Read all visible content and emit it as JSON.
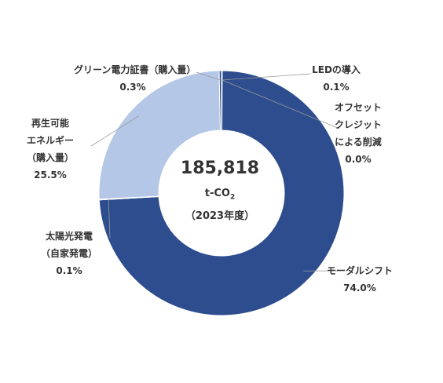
{
  "chart_data": {
    "type": "pie",
    "donut": true,
    "center": {
      "total": "185,818",
      "unit_main": "t-CO",
      "unit_sub": "2",
      "year": "（2023年度）"
    },
    "slices": [
      {
        "label_lines": [
          "LEDの導入"
        ],
        "value_text": "0.1%",
        "value": 0.1,
        "color": "#2e4d8e"
      },
      {
        "label_lines": [
          "オフセット",
          "クレジット",
          "による削減"
        ],
        "value_text": "0.0%",
        "value": 0.0,
        "color": "#2e4d8e"
      },
      {
        "label_lines": [
          "モーダルシフト"
        ],
        "value_text": "74.0%",
        "value": 74.0,
        "color": "#2e4d8e"
      },
      {
        "label_lines": [
          "太陽光発電",
          "（自家発電）"
        ],
        "value_text": "0.1%",
        "value": 0.1,
        "color": "#2e4d8e"
      },
      {
        "label_lines": [
          "再生可能",
          "エネルギー",
          "（購入量）"
        ],
        "value_text": "25.5%",
        "value": 25.5,
        "color": "#b4c7e7"
      },
      {
        "label_lines": [
          "グリーン電力証書（購入量）"
        ],
        "value_text": "0.3%",
        "value": 0.3,
        "color": "#2e4d8e"
      }
    ]
  }
}
